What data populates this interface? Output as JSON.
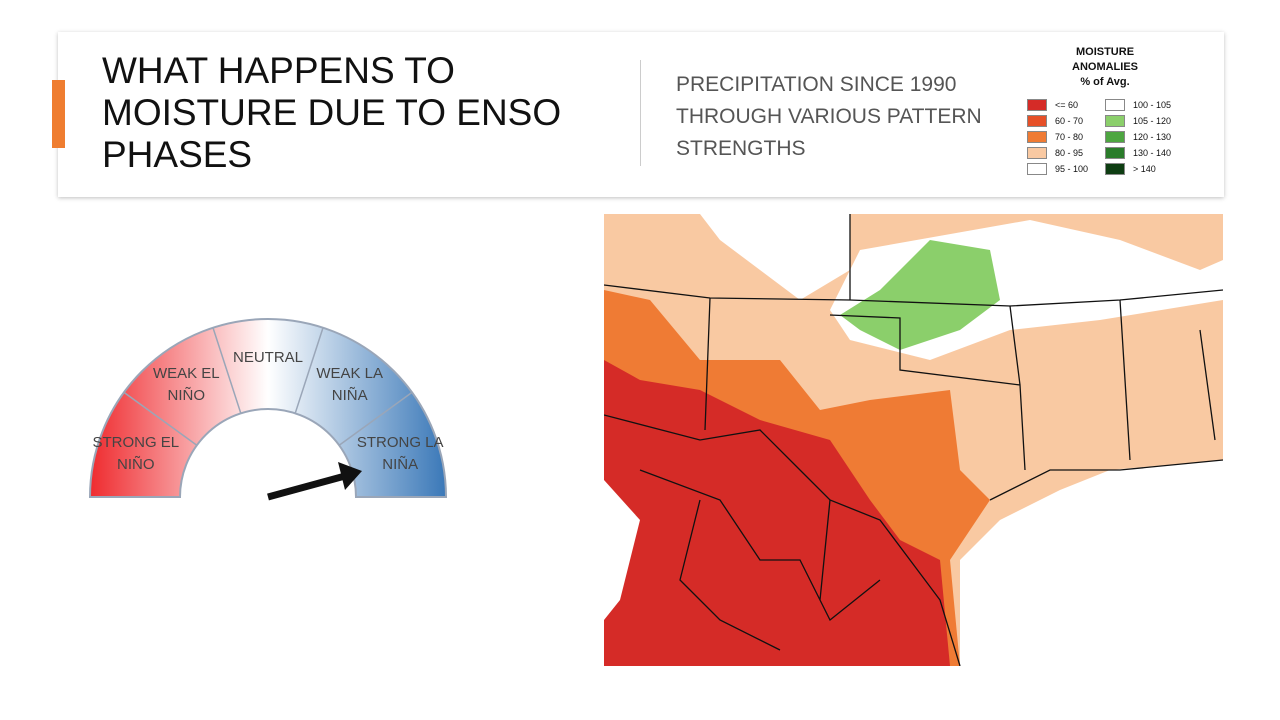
{
  "header": {
    "title": "WHAT HAPPENS TO MOISTURE DUE TO ENSO PHASES",
    "subtitle": "PRECIPITATION SINCE 1990 THROUGH VARIOUS PATTERN STRENGTHS"
  },
  "legend": {
    "title": "MOISTURE ANOMALIES",
    "subtitle": "% of Avg.",
    "items": [
      {
        "label": "<= 60",
        "color": "#d52b27"
      },
      {
        "label": "60 - 70",
        "color": "#e65028"
      },
      {
        "label": "70 - 80",
        "color": "#ef7b34"
      },
      {
        "label": "80 - 95",
        "color": "#f9c9a2"
      },
      {
        "label": "95 - 100",
        "color": "#ffffff"
      },
      {
        "label": "100 - 105",
        "color": "#ffffff"
      },
      {
        "label": "105 - 120",
        "color": "#8bcf6b"
      },
      {
        "label": "120 - 130",
        "color": "#4ea641"
      },
      {
        "label": "130 - 140",
        "color": "#2a7c2a"
      },
      {
        "label": "> 140",
        "color": "#0e3d12"
      }
    ]
  },
  "gauge": {
    "segments": [
      "STRONG EL NIÑO",
      "WEAK EL NIÑO",
      "NEUTRAL",
      "WEAK LA NIÑA",
      "STRONG LA NIÑA"
    ]
  }
}
